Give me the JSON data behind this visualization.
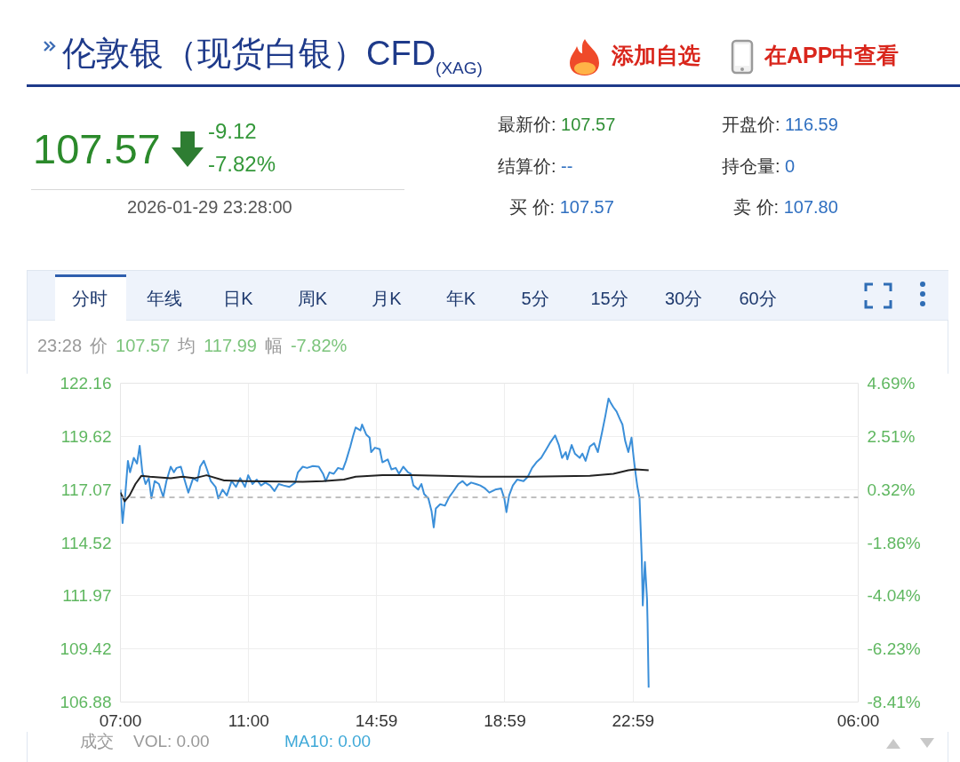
{
  "chart_data": {
    "type": "line",
    "title": "伦敦银（现货白银）CFD$_{(XAG)}$",
    "annotations": [
      "添加自选",
      "在APP中查看",
      "107.57",
      "-9.12",
      "-7.82%",
      "2026-01-29 23:28:00",
      "最新价: 107.57",
      "开盘价: 116.59",
      "结算价: --",
      "持仓量: 0",
      "买 价: 107.57",
      "卖 价: 107.80",
      "分时",
      "年线",
      "日K",
      "周K",
      "月K",
      "年K",
      "5分",
      "15分",
      "30分",
      "60分",
      "23:28",
      "价",
      "107.57",
      "均",
      "117.99",
      "幅",
      "-7.82%",
      "成交",
      "VOL: 0.00",
      "MA10: 0.00"
    ],
    "xlim": [
      "2026-01-29T07:00",
      "2026-01-30T06:00"
    ],
    "xticks": [
      {
        "value": "2026-01-29T07:00",
        "label": "07:00"
      },
      {
        "value": "2026-01-29T11:00",
        "label": "11:00"
      },
      {
        "value": "2026-01-29T14:59",
        "label": "14:59"
      },
      {
        "value": "2026-01-29T18:59",
        "label": "18:59"
      },
      {
        "value": "2026-01-29T22:59",
        "label": "22:59"
      },
      {
        "value": "2026-01-30T06:00",
        "label": "06:00"
      }
    ],
    "ylim": [
      106.88,
      122.16
    ],
    "yticks": [
      106.88,
      109.42,
      111.97,
      114.52,
      117.07,
      119.62,
      122.16
    ],
    "y2lim": [
      -8.41,
      4.69
    ],
    "y2ticks": [
      {
        "value": -8.41,
        "label": "-8.41%"
      },
      {
        "value": -6.23,
        "label": "-6.23%"
      },
      {
        "value": -4.04,
        "label": "-4.04%"
      },
      {
        "value": -1.86,
        "label": "-1.86%"
      },
      {
        "value": 0.32,
        "label": "0.32%"
      },
      {
        "value": 2.51,
        "label": "2.51%"
      },
      {
        "value": 4.69,
        "label": "4.69%"
      }
    ],
    "grid": true,
    "ref_lines": [
      {
        "axis": "y",
        "value": 116.69,
        "color": "#aaaaaa",
        "line_style": "dashed"
      }
    ],
    "series": [
      {
        "color": "#3b8fd9",
        "x": [
          "2026-01-29T07:00",
          "2026-01-29T07:04",
          "2026-01-29T07:08",
          "2026-01-29T07:14",
          "2026-01-29T07:18",
          "2026-01-29T07:25",
          "2026-01-29T07:31",
          "2026-01-29T07:36",
          "2026-01-29T07:41",
          "2026-01-29T07:47",
          "2026-01-29T07:53",
          "2026-01-29T07:58",
          "2026-01-29T08:04",
          "2026-01-29T08:12",
          "2026-01-29T08:20",
          "2026-01-29T08:26",
          "2026-01-29T08:34",
          "2026-01-29T08:40",
          "2026-01-29T08:45",
          "2026-01-29T08:53",
          "2026-01-29T08:59",
          "2026-01-29T09:07",
          "2026-01-29T09:16",
          "2026-01-29T09:24",
          "2026-01-29T09:29",
          "2026-01-29T09:36",
          "2026-01-29T09:42",
          "2026-01-29T09:49",
          "2026-01-29T09:58",
          "2026-01-29T10:03",
          "2026-01-29T10:11",
          "2026-01-29T10:19",
          "2026-01-29T10:28",
          "2026-01-29T10:36",
          "2026-01-29T10:44",
          "2026-01-29T10:53",
          "2026-01-29T10:59",
          "2026-01-29T11:07",
          "2026-01-29T11:15",
          "2026-01-29T11:23",
          "2026-01-29T11:31",
          "2026-01-29T11:40",
          "2026-01-29T11:48",
          "2026-01-29T11:56",
          "2026-01-29T12:05",
          "2026-01-29T12:16",
          "2026-01-29T12:27",
          "2026-01-29T12:32",
          "2026-01-29T12:41",
          "2026-01-29T12:49",
          "2026-01-29T13:00",
          "2026-01-29T13:11",
          "2026-01-29T13:19",
          "2026-01-29T13:24",
          "2026-01-29T13:31",
          "2026-01-29T13:39",
          "2026-01-29T13:47",
          "2026-01-29T13:56",
          "2026-01-29T14:02",
          "2026-01-29T14:10",
          "2026-01-29T14:15",
          "2026-01-29T14:20",
          "2026-01-29T14:29",
          "2026-01-29T14:32",
          "2026-01-29T14:40",
          "2026-01-29T14:46",
          "2026-01-29T14:49",
          "2026-01-29T14:56",
          "2026-01-29T15:05",
          "2026-01-29T15:10",
          "2026-01-29T15:20",
          "2026-01-29T15:27",
          "2026-01-29T15:35",
          "2026-01-29T15:41",
          "2026-01-29T15:49",
          "2026-01-29T15:58",
          "2026-01-29T16:03",
          "2026-01-29T16:08",
          "2026-01-29T16:17",
          "2026-01-29T16:23",
          "2026-01-29T16:28",
          "2026-01-29T16:36",
          "2026-01-29T16:42",
          "2026-01-29T16:46",
          "2026-01-29T16:50",
          "2026-01-29T16:58",
          "2026-01-29T17:07",
          "2026-01-29T17:15",
          "2026-01-29T17:23",
          "2026-01-29T17:32",
          "2026-01-29T17:40",
          "2026-01-29T17:48",
          "2026-01-29T17:56",
          "2026-01-29T18:05",
          "2026-01-29T18:13",
          "2026-01-29T18:22",
          "2026-01-29T18:30",
          "2026-01-29T18:41",
          "2026-01-29T18:52",
          "2026-01-29T18:58",
          "2026-01-29T19:02",
          "2026-01-29T19:07",
          "2026-01-29T19:14",
          "2026-01-29T19:22",
          "2026-01-29T19:34",
          "2026-01-29T19:42",
          "2026-01-29T19:50",
          "2026-01-29T19:58",
          "2026-01-29T20:07",
          "2026-01-29T20:15",
          "2026-01-29T20:23",
          "2026-01-29T20:33",
          "2026-01-29T20:40",
          "2026-01-29T20:46",
          "2026-01-29T20:53",
          "2026-01-29T20:56",
          "2026-01-29T21:04",
          "2026-01-29T21:10",
          "2026-01-29T21:19",
          "2026-01-29T21:24",
          "2026-01-29T21:30",
          "2026-01-29T21:38",
          "2026-01-29T21:46",
          "2026-01-29T21:53",
          "2026-01-29T22:01",
          "2026-01-29T22:07",
          "2026-01-29T22:13",
          "2026-01-29T22:17",
          "2026-01-29T22:22",
          "2026-01-29T22:28",
          "2026-01-29T22:34",
          "2026-01-29T22:39",
          "2026-01-29T22:44",
          "2026-01-29T22:50",
          "2026-01-29T22:56",
          "2026-01-29T23:00",
          "2026-01-29T23:04",
          "2026-01-29T23:07",
          "2026-01-29T23:11",
          "2026-01-29T23:15",
          "2026-01-29T23:17",
          "2026-01-29T23:21",
          "2026-01-29T23:25",
          "2026-01-29T23:26",
          "2026-01-29T23:28"
        ],
        "values": [
          117.06,
          115.46,
          116.5,
          118.44,
          117.89,
          118.58,
          118.31,
          119.16,
          117.89,
          117.33,
          117.61,
          116.64,
          117.47,
          117.33,
          116.71,
          117.47,
          118.16,
          117.89,
          118.1,
          118.16,
          117.61,
          116.92,
          117.61,
          117.47,
          118.16,
          118.44,
          118.02,
          117.47,
          117.19,
          116.64,
          117.06,
          116.78,
          117.47,
          117.19,
          117.61,
          117.19,
          117.75,
          117.33,
          117.54,
          117.26,
          117.4,
          117.26,
          116.99,
          117.33,
          117.26,
          117.19,
          117.4,
          117.89,
          118.16,
          118.1,
          118.19,
          118.16,
          117.82,
          117.47,
          117.89,
          117.82,
          118.1,
          118.03,
          118.44,
          119.13,
          119.62,
          120.04,
          119.9,
          120.18,
          119.69,
          119.55,
          118.86,
          119.07,
          119.0,
          118.37,
          118.51,
          118.03,
          118.1,
          117.82,
          118.16,
          117.89,
          117.82,
          117.26,
          117.06,
          117.33,
          116.85,
          116.64,
          116.02,
          115.25,
          116.16,
          116.36,
          116.29,
          116.71,
          116.99,
          117.33,
          117.47,
          117.26,
          117.4,
          117.33,
          117.26,
          117.12,
          116.92,
          117.06,
          117.12,
          116.64,
          115.98,
          116.78,
          117.26,
          117.54,
          117.47,
          117.68,
          118.1,
          118.37,
          118.58,
          118.93,
          119.28,
          119.66,
          119.2,
          118.58,
          118.86,
          118.51,
          119.2,
          118.79,
          118.58,
          118.79,
          118.44,
          119.13,
          119.28,
          118.86,
          119.83,
          120.59,
          121.43,
          121.22,
          121.01,
          120.8,
          120.45,
          120.18,
          119.41,
          118.86,
          119.55,
          118.58,
          117.75,
          117.19,
          116.64,
          113.87,
          111.51,
          113.59,
          111.79,
          110.68,
          107.57
        ]
      },
      {
        "color": "#222222",
        "x": [
          "2026-01-29T07:00",
          "2026-01-29T07:08",
          "2026-01-29T07:17",
          "2026-01-29T07:28",
          "2026-01-29T07:39",
          "2026-01-29T07:55",
          "2026-01-29T08:34",
          "2026-01-29T08:56",
          "2026-01-29T09:19",
          "2026-01-29T09:41",
          "2026-01-29T10:14",
          "2026-01-29T10:53",
          "2026-01-29T12:41",
          "2026-01-29T13:19",
          "2026-01-29T13:58",
          "2026-01-29T14:20",
          "2026-01-29T15:10",
          "2026-01-29T16:05",
          "2026-01-29T18:13",
          "2026-01-29T19:47",
          "2026-01-29T21:38",
          "2026-01-29T22:22",
          "2026-01-29T22:50",
          "2026-01-29T23:04",
          "2026-01-29T23:28"
        ],
        "values": [
          116.92,
          116.5,
          116.78,
          117.33,
          117.72,
          117.68,
          117.61,
          117.68,
          117.61,
          117.75,
          117.5,
          117.47,
          117.44,
          117.47,
          117.54,
          117.68,
          117.75,
          117.75,
          117.68,
          117.68,
          117.72,
          117.82,
          117.99,
          118.03,
          117.99
        ]
      }
    ]
  }
}
